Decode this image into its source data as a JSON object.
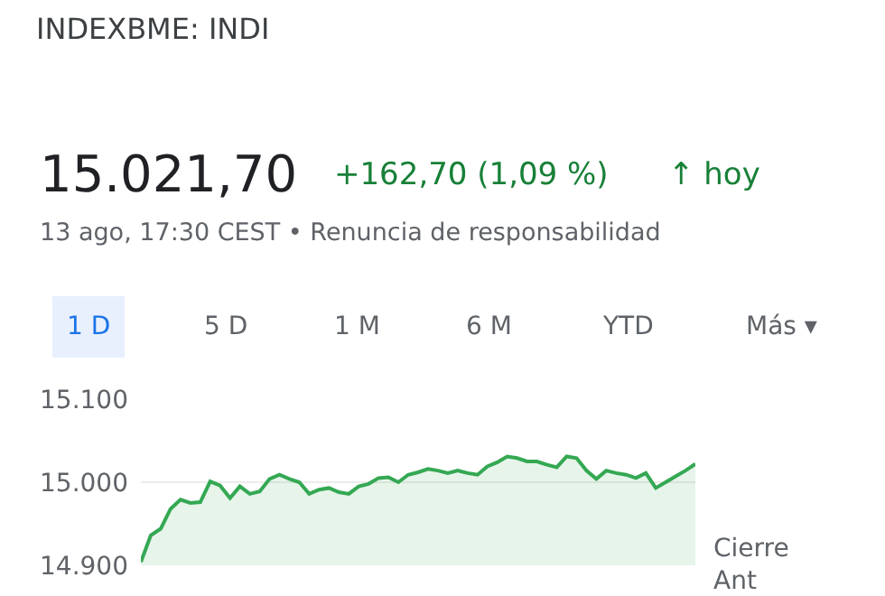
{
  "chart_data": {
    "type": "area",
    "title": "INDEXBME: INDI",
    "annotations": [
      "15.021,70",
      "+162,70 (1,09 %)",
      "↑ hoy",
      "13 ago, 17:30 CEST • Renuncia de responsabilidad",
      "1 D",
      "5 D",
      "1 M",
      "6 M",
      "YTD",
      "Más ▾",
      "Cierre\nAnt"
    ],
    "categories": [
      null,
      null,
      null,
      null,
      null,
      null,
      null,
      null,
      null,
      null,
      null,
      null,
      null,
      null,
      null,
      null,
      null,
      null,
      null,
      null,
      null,
      null,
      null,
      null,
      null,
      null,
      null,
      null,
      null,
      null,
      null,
      null,
      null,
      null,
      null,
      null,
      null,
      null,
      null,
      null,
      null,
      null,
      null,
      null,
      null,
      null,
      null,
      null,
      null,
      null,
      null,
      null,
      null,
      null,
      null,
      null,
      null
    ],
    "series": [
      {
        "color": "#34a853",
        "values": [
          14904,
          14936,
          14944,
          14968,
          14979,
          14975,
          14976,
          15001,
          14996,
          14981,
          14995,
          14986,
          14989,
          15004,
          15009,
          15004,
          15000,
          14986,
          14991,
          14993,
          14988,
          14986,
          14995,
          14998,
          15005,
          15006,
          15000,
          15009,
          15012,
          15016,
          15014,
          15011,
          15014,
          15011,
          15009,
          15019,
          15024,
          15031,
          15029,
          15025,
          15025,
          15021,
          15018,
          15031,
          15029,
          15014,
          15004,
          15014,
          15011,
          15009,
          15005,
          15011,
          14993,
          15000,
          15007,
          15014,
          15022
        ]
      }
    ],
    "ylim": [
      14900,
      15100
    ],
    "yticks": [
      {
        "value": 14900,
        "label": "14.900"
      },
      {
        "value": 15000,
        "label": "15.000"
      },
      {
        "value": 15100,
        "label": "15.100"
      }
    ],
    "grid": "y",
    "tick_labels": "y"
  }
}
